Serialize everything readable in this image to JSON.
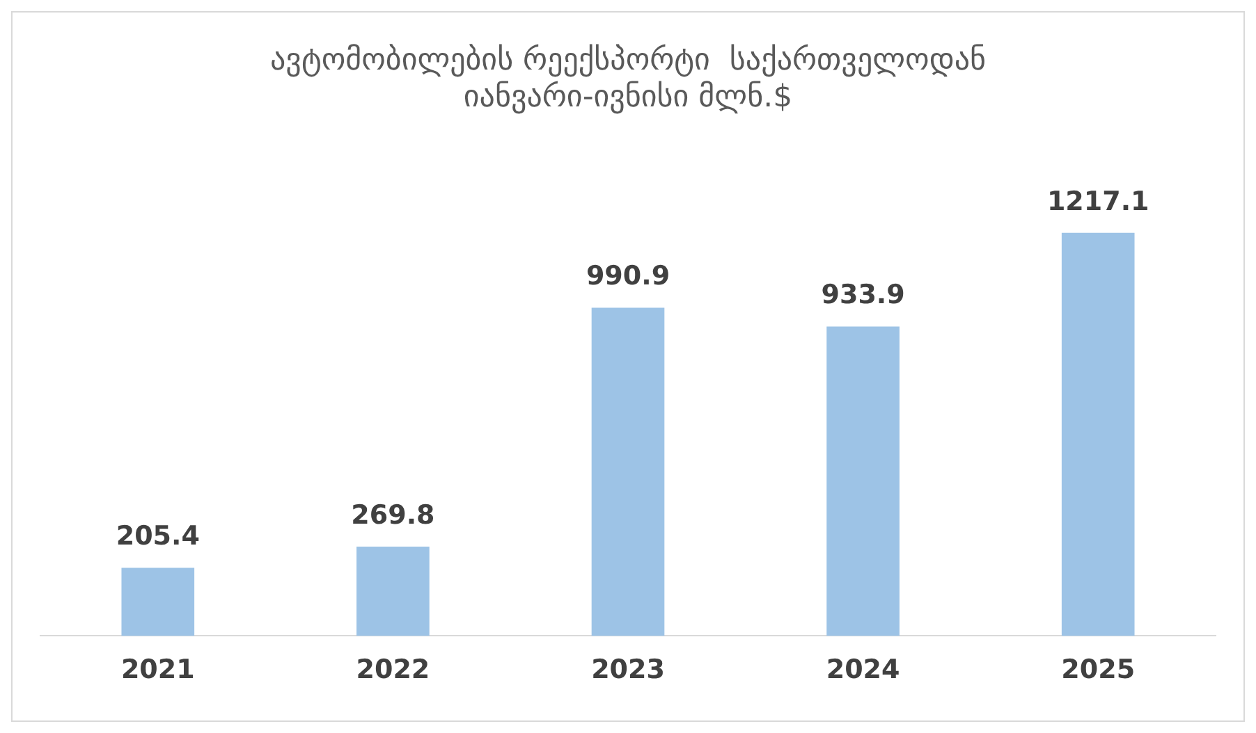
{
  "chart_data": {
    "type": "bar",
    "title": "ავტომობილების რეექსპორტი  საქართველოდან\nიანვარი-ივნისი მლნ.$",
    "categories": [
      "2021",
      "2022",
      "2023",
      "2024",
      "2025"
    ],
    "values": [
      205.4,
      269.8,
      990.9,
      933.9,
      1217.1
    ],
    "color": "#9dc3e6",
    "data_labels": true,
    "grid": false,
    "legend": false
  }
}
